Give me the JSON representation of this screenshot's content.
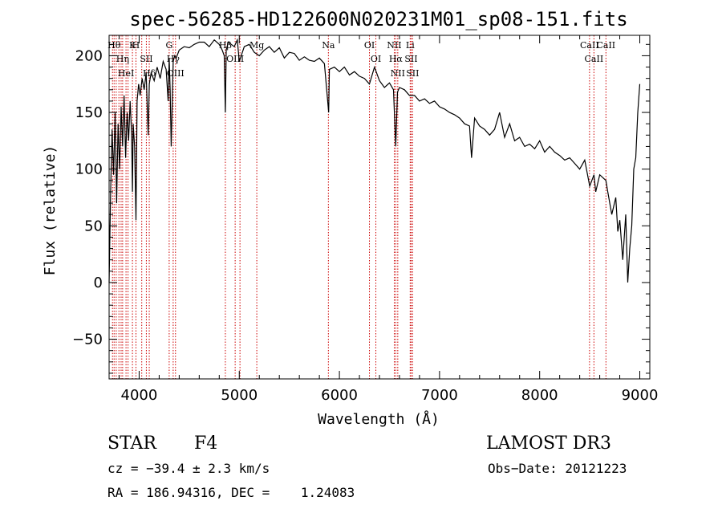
{
  "chart_data": {
    "type": "line",
    "title": "spec-56285-HD122600N020231M01_sp08-151.fits",
    "xlabel": "Wavelength (Å)",
    "ylabel": "Flux (relative)",
    "xlim": [
      3700,
      9100
    ],
    "ylim": [
      -85,
      218
    ],
    "xticks": [
      4000,
      5000,
      6000,
      7000,
      8000,
      9000
    ],
    "yticks": [
      -50,
      0,
      50,
      100,
      150,
      200
    ],
    "xtick_labels": [
      "4000",
      "5000",
      "6000",
      "7000",
      "8000",
      "9000"
    ],
    "ytick_labels": [
      "−50",
      "0",
      "50",
      "100",
      "150",
      "200"
    ],
    "grid": false,
    "series": [
      {
        "x": [
          3700,
          3715,
          3730,
          3745,
          3760,
          3775,
          3790,
          3805,
          3820,
          3835,
          3850,
          3865,
          3880,
          3895,
          3910,
          3925,
          3933,
          3940,
          3955,
          3968,
          3980,
          3995,
          4010,
          4030,
          4050,
          4070,
          4090,
          4101,
          4120,
          4150,
          4180,
          4210,
          4240,
          4270,
          4290,
          4300,
          4310,
          4320,
          4340,
          4355,
          4370,
          4400,
          4450,
          4500,
          4550,
          4600,
          4650,
          4700,
          4750,
          4800,
          4830,
          4850,
          4861,
          4870,
          4890,
          4920,
          4950,
          4980,
          5000,
          5050,
          5100,
          5150,
          5200,
          5250,
          5300,
          5350,
          5400,
          5450,
          5500,
          5550,
          5600,
          5650,
          5700,
          5750,
          5800,
          5850,
          5893,
          5900,
          5950,
          6000,
          6050,
          6100,
          6150,
          6200,
          6250,
          6300,
          6350,
          6400,
          6450,
          6500,
          6540,
          6563,
          6580,
          6600,
          6650,
          6700,
          6750,
          6800,
          6850,
          6900,
          6950,
          7000,
          7050,
          7100,
          7150,
          7200,
          7250,
          7300,
          7320,
          7350,
          7400,
          7450,
          7500,
          7550,
          7600,
          7650,
          7700,
          7750,
          7800,
          7850,
          7900,
          7950,
          8000,
          8050,
          8100,
          8150,
          8200,
          8250,
          8300,
          8350,
          8400,
          8450,
          8500,
          8542,
          8560,
          8600,
          8662,
          8680,
          8720,
          8760,
          8780,
          8800,
          8830,
          8860,
          8880,
          8900,
          8920,
          8940,
          8960,
          8980,
          9000
        ],
        "y": [
          0,
          80,
          135,
          95,
          150,
          70,
          140,
          100,
          155,
          120,
          165,
          110,
          150,
          125,
          160,
          130,
          80,
          140,
          120,
          55,
          160,
          175,
          165,
          180,
          170,
          185,
          130,
          175,
          185,
          178,
          190,
          180,
          195,
          188,
          160,
          198,
          170,
          120,
          195,
          200,
          198,
          205,
          208,
          207,
          210,
          212,
          212,
          208,
          214,
          210,
          205,
          200,
          150,
          205,
          212,
          210,
          208,
          214,
          195,
          208,
          210,
          203,
          200,
          205,
          208,
          203,
          207,
          198,
          203,
          202,
          196,
          199,
          196,
          195,
          198,
          193,
          150,
          188,
          190,
          186,
          190,
          183,
          186,
          182,
          180,
          175,
          190,
          178,
          172,
          176,
          170,
          120,
          168,
          172,
          170,
          165,
          165,
          160,
          162,
          158,
          160,
          155,
          153,
          150,
          148,
          145,
          140,
          138,
          110,
          145,
          138,
          135,
          130,
          135,
          150,
          128,
          140,
          125,
          128,
          120,
          122,
          118,
          125,
          115,
          120,
          115,
          112,
          108,
          110,
          105,
          100,
          108,
          85,
          95,
          80,
          95,
          90,
          80,
          60,
          75,
          45,
          55,
          20,
          60,
          0,
          30,
          50,
          100,
          110,
          150,
          175
        ]
      }
    ],
    "spectral_lines": [
      {
        "wavelength": 3734,
        "label": ""
      },
      {
        "wavelength": 3750,
        "label": "Hθ"
      },
      {
        "wavelength": 3771,
        "label": ""
      },
      {
        "wavelength": 3798,
        "label": ""
      },
      {
        "wavelength": 3820,
        "label": ""
      },
      {
        "wavelength": 3835,
        "label": "Hη"
      },
      {
        "wavelength": 3869,
        "label": "HeI"
      },
      {
        "wavelength": 3889,
        "label": ""
      },
      {
        "wavelength": 3933,
        "label": "K"
      },
      {
        "wavelength": 3968,
        "label": "H"
      },
      {
        "wavelength": 4026,
        "label": ""
      },
      {
        "wavelength": 4072,
        "label": "SII"
      },
      {
        "wavelength": 4101,
        "label": "Hδ"
      },
      {
        "wavelength": 4300,
        "label": "G"
      },
      {
        "wavelength": 4340,
        "label": "Hγ"
      },
      {
        "wavelength": 4363,
        "label": "OIII"
      },
      {
        "wavelength": 4861,
        "label": "Hβ"
      },
      {
        "wavelength": 4959,
        "label": "OIII"
      },
      {
        "wavelength": 5007,
        "label": ""
      },
      {
        "wavelength": 5175,
        "label": "Mg"
      },
      {
        "wavelength": 5890,
        "label": "Na"
      },
      {
        "wavelength": 6300,
        "label": "OI"
      },
      {
        "wavelength": 6364,
        "label": "OI"
      },
      {
        "wavelength": 6548,
        "label": "NII"
      },
      {
        "wavelength": 6563,
        "label": "Hα"
      },
      {
        "wavelength": 6583,
        "label": "NII"
      },
      {
        "wavelength": 6707,
        "label": "Li"
      },
      {
        "wavelength": 6716,
        "label": "SII"
      },
      {
        "wavelength": 6731,
        "label": "SII"
      },
      {
        "wavelength": 8498,
        "label": "CaII"
      },
      {
        "wavelength": 8542,
        "label": "CaII"
      },
      {
        "wavelength": 8662,
        "label": "CaII"
      }
    ]
  },
  "info": {
    "object_class": "STAR",
    "subclass": "F4",
    "survey": "LAMOST DR3",
    "cz": "cz = −39.4 ± 2.3 km/s",
    "obs_date": "Obs−Date: 20121223",
    "radec": "RA = 186.94316, DEC =    1.24083"
  },
  "colors": {
    "spectrum": "#000000",
    "line_markers": "#cc0000"
  }
}
